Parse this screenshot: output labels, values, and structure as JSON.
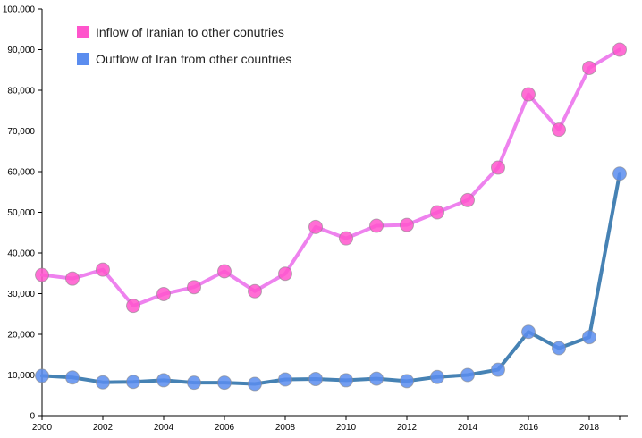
{
  "chart_data": {
    "type": "line",
    "x": [
      2000,
      2001,
      2002,
      2003,
      2004,
      2005,
      2006,
      2007,
      2008,
      2009,
      2010,
      2011,
      2012,
      2013,
      2014,
      2015,
      2016,
      2017,
      2018,
      2019
    ],
    "x_ticks": [
      "2000",
      "2002",
      "2004",
      "2006",
      "2008",
      "2010",
      "2012",
      "2014",
      "2016",
      "2018"
    ],
    "y_ticks": [
      "0",
      "10,000",
      "20,000",
      "30,000",
      "40,000",
      "50,000",
      "60,000",
      "70,000",
      "80,000",
      "90,000",
      "100,000"
    ],
    "ylim": [
      0,
      100000
    ],
    "xlim": [
      2000,
      2019
    ],
    "grid": false,
    "legend_position": "top-left",
    "series": [
      {
        "name": "Inflow of Iranian to other conutries",
        "line_color": "#ee82ee",
        "marker_color": "#ff55cc",
        "values": [
          34600,
          33700,
          35900,
          27000,
          29900,
          31600,
          35500,
          30600,
          34900,
          46400,
          43600,
          46700,
          46900,
          50000,
          53000,
          61000,
          79000,
          70300,
          85500,
          90000
        ]
      },
      {
        "name": "Outflow of Iran from other countries",
        "line_color": "#4682b4",
        "marker_color": "#5b8def",
        "values": [
          9800,
          9400,
          8200,
          8300,
          8700,
          8100,
          8100,
          7800,
          8900,
          9000,
          8700,
          9100,
          8500,
          9500,
          10000,
          11300,
          20600,
          16600,
          19300,
          59500
        ]
      }
    ]
  }
}
